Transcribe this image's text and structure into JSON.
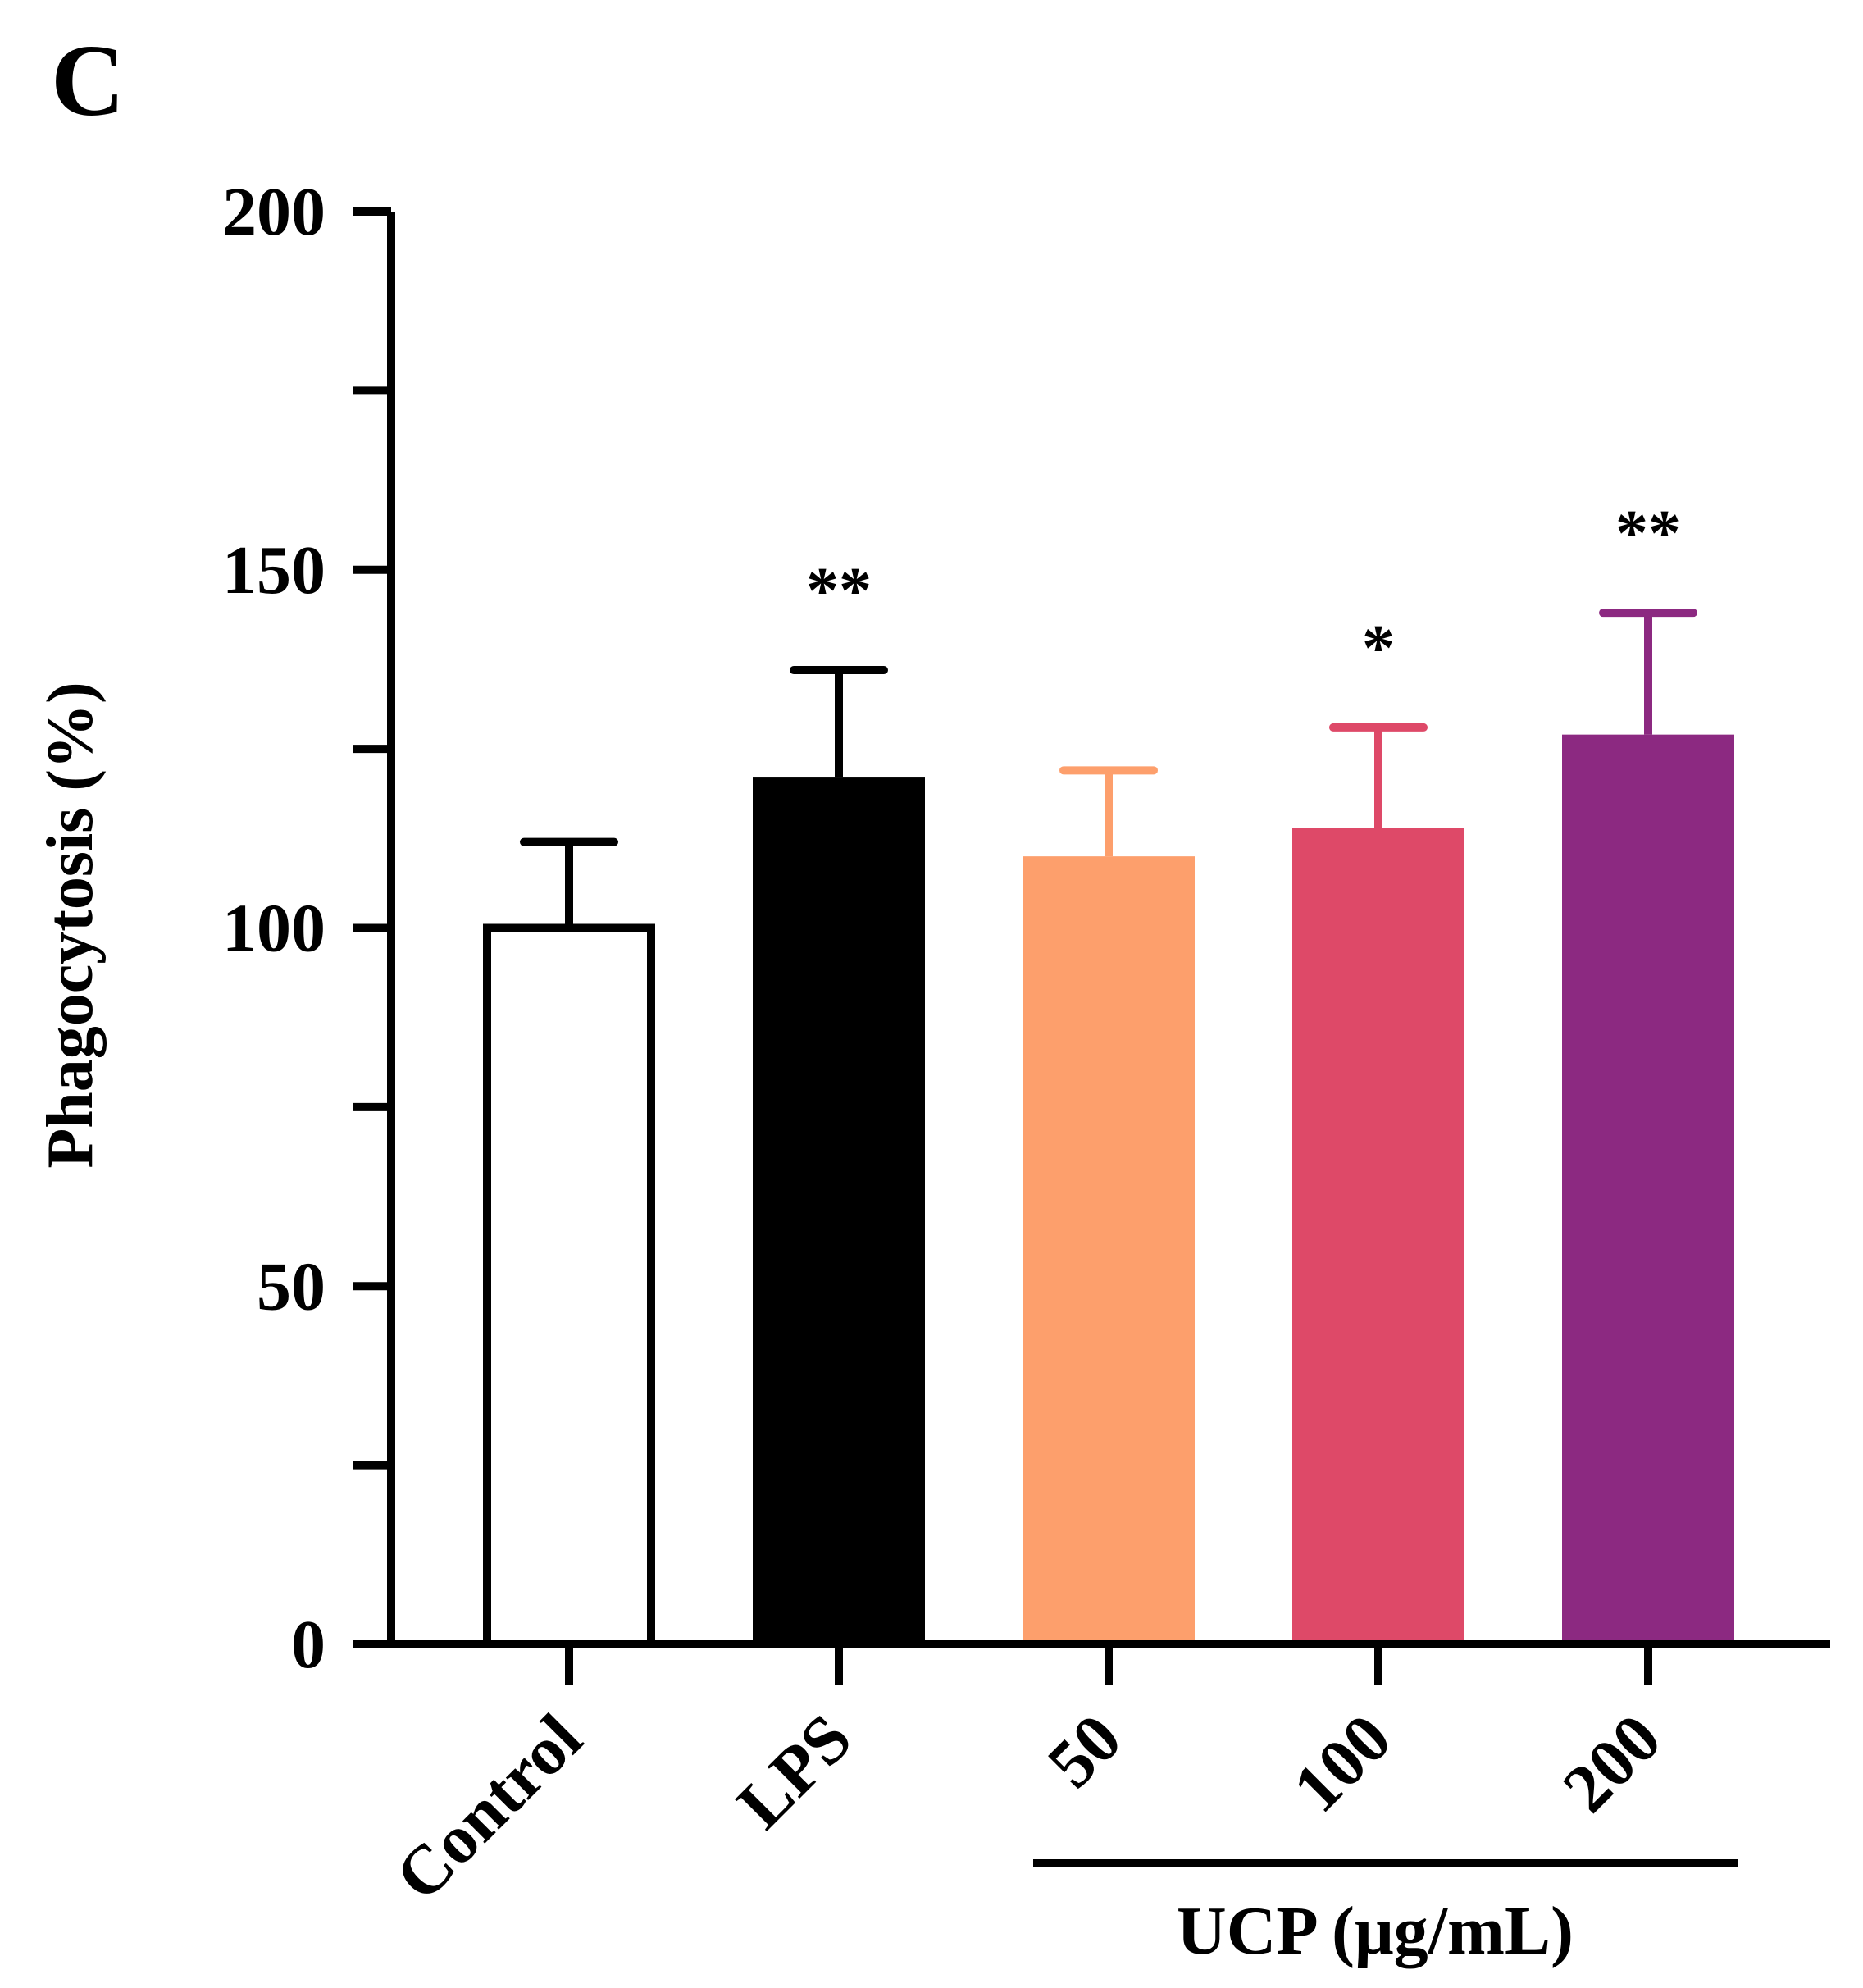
{
  "panel_label": "C",
  "chart_data": {
    "type": "bar",
    "ylabel": "Phagocytosis (%)",
    "ylim": [
      0,
      200
    ],
    "yticks": [
      0,
      50,
      100,
      150,
      200
    ],
    "yminor_step": 25,
    "categories": [
      "Control",
      "LPS",
      "50",
      "100",
      "200"
    ],
    "values": [
      100,
      121,
      110,
      114,
      127
    ],
    "errors": [
      12,
      15,
      12,
      14,
      17
    ],
    "colors": [
      "#ffffff",
      "#000000",
      "#fd9f6c",
      "#de4968",
      "#8c2981"
    ],
    "outlined": [
      true,
      false,
      false,
      false,
      false
    ],
    "significance": [
      "",
      "**",
      "",
      "*",
      "**"
    ],
    "group_label": {
      "text": "UCP (μg/mL)",
      "categories": [
        "50",
        "100",
        "200"
      ]
    },
    "grid": false,
    "legend": "none"
  }
}
